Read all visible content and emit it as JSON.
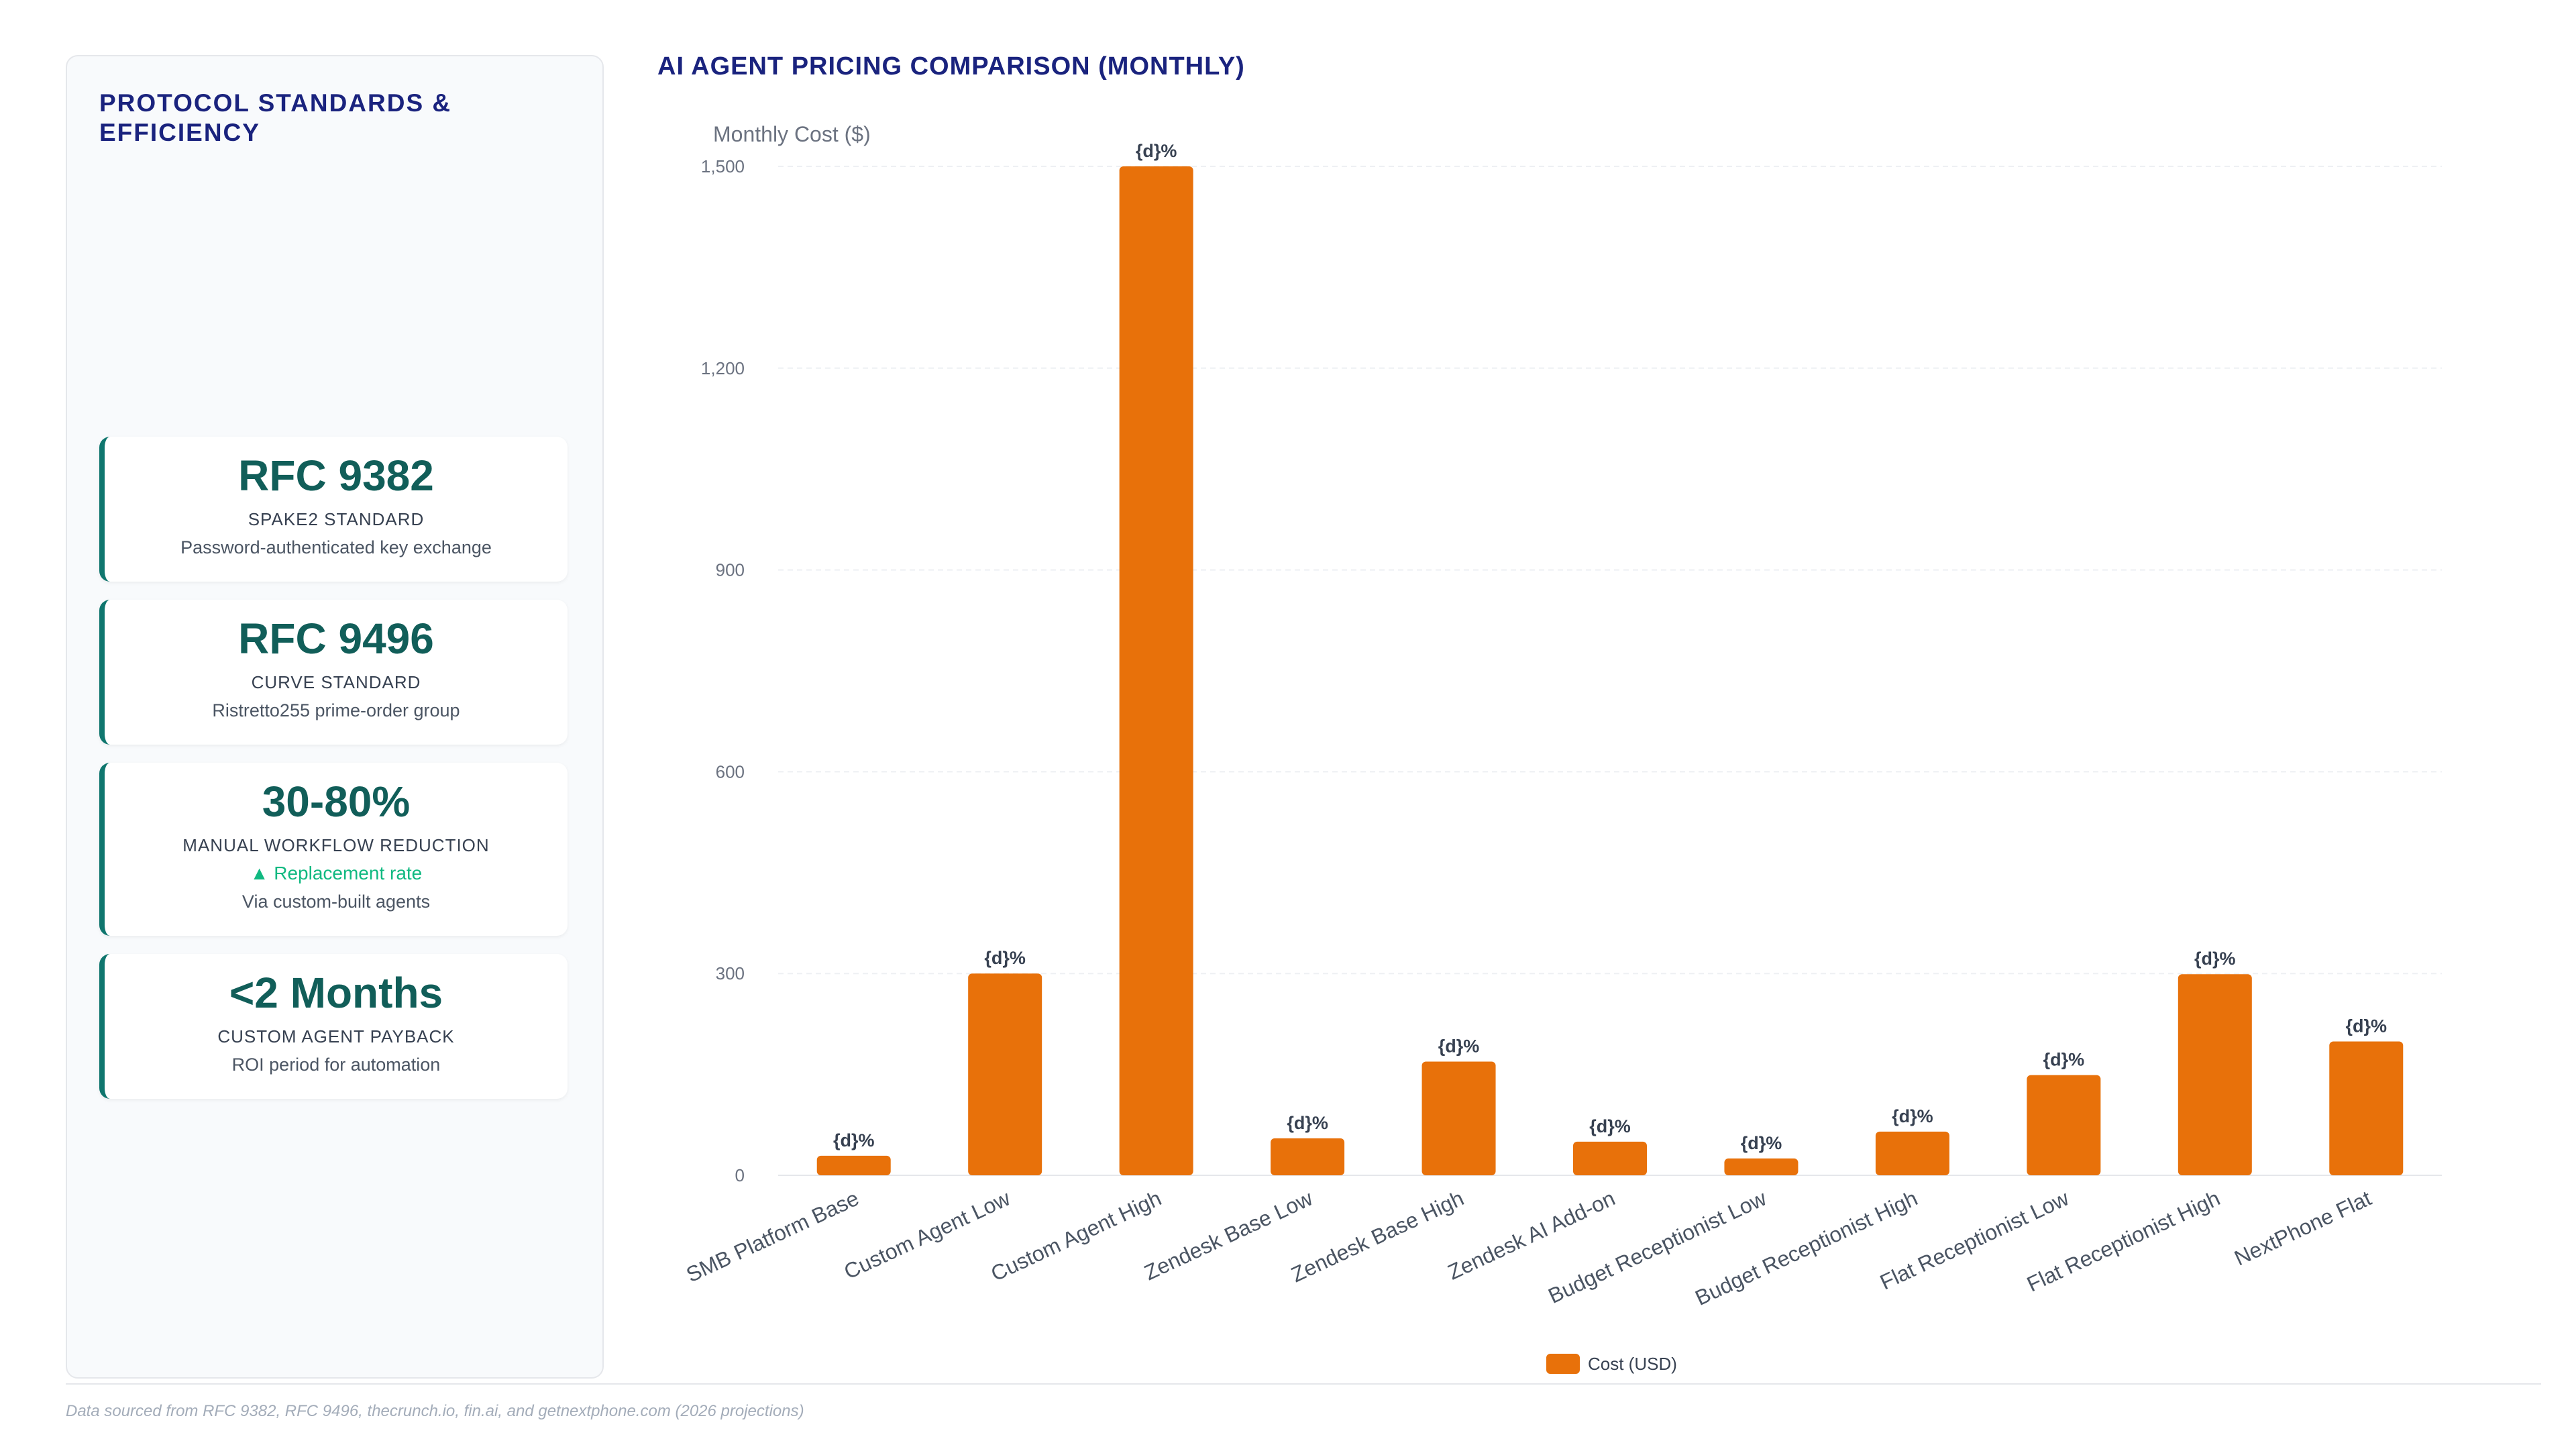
{
  "sidebar": {
    "title": "PROTOCOL STANDARDS & EFFICIENCY",
    "cards": [
      {
        "value": "RFC 9382",
        "label": "SPAKE2 STANDARD",
        "desc": "Password-authenticated key exchange"
      },
      {
        "value": "RFC 9496",
        "label": "CURVE STANDARD",
        "desc": "Ristretto255 prime-order group"
      },
      {
        "value": "30-80%",
        "label": "MANUAL WORKFLOW REDUCTION",
        "trend": "▲ Replacement rate",
        "desc": "Via custom-built agents"
      },
      {
        "value": "<2 Months",
        "label": "CUSTOM AGENT PAYBACK",
        "desc": "ROI period for automation"
      }
    ]
  },
  "footer": "Data sourced from RFC 9382, RFC 9496, thecrunch.io, fin.ai, and getnextphone.com (2026 projections)",
  "colors": {
    "bar": "#e8710a",
    "accent": "#0f766e",
    "title": "#1a237e",
    "trend": "#10b981"
  },
  "chart_data": {
    "type": "bar",
    "title": "AI AGENT PRICING COMPARISON (MONTHLY)",
    "ylabel": "Monthly Cost ($)",
    "xlabel": "",
    "ylim": [
      0,
      1500
    ],
    "yticks": [
      0,
      300,
      600,
      900,
      1200,
      1500
    ],
    "ytick_labels": [
      "0",
      "300",
      "600",
      "900",
      "1,200",
      "1,500"
    ],
    "grid": true,
    "legend_position": "bottom",
    "categories": [
      "SMB Platform Base",
      "Custom Agent Low",
      "Custom Agent High",
      "Zendesk Base Low",
      "Zendesk Base High",
      "Zendesk AI Add-on",
      "Budget Receptionist Low",
      "Budget Receptionist High",
      "Flat Receptionist Low",
      "Flat Receptionist High",
      "NextPhone Flat"
    ],
    "series": [
      {
        "name": "Cost (USD)",
        "values": [
          29,
          300,
          1500,
          55,
          169,
          50,
          25,
          65,
          149,
          299,
          199
        ]
      }
    ],
    "data_labels": [
      "{d}%",
      "{d}%",
      "{d}%",
      "{d}%",
      "{d}%",
      "{d}%",
      "{d}%",
      "{d}%",
      "{d}%",
      "{d}%",
      "{d}%"
    ]
  }
}
